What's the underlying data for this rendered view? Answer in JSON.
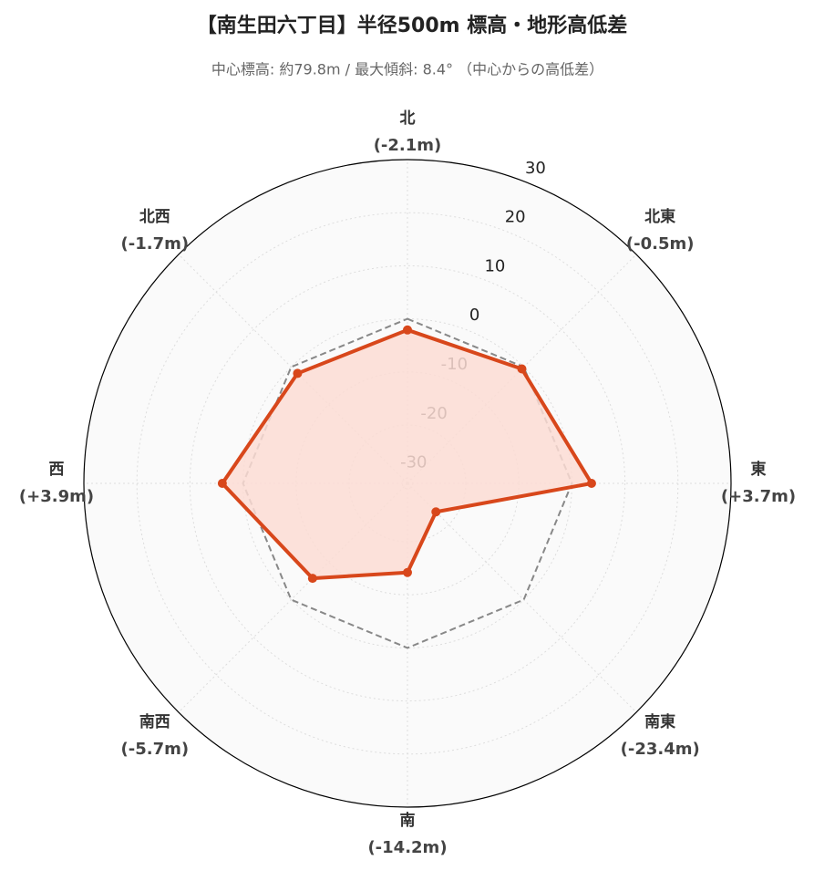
{
  "chart_data": {
    "type": "radar",
    "title": "【南生田六丁目】半径500m 標高・地形高低差",
    "subtitle": "中心標高: 約79.8m / 最大傾斜: 8.4° （中心からの高低差）",
    "categories": [
      "北",
      "北東",
      "東",
      "南東",
      "南",
      "南西",
      "西",
      "北西"
    ],
    "values": [
      -2.1,
      -0.5,
      3.7,
      -23.4,
      -14.2,
      -5.7,
      3.9,
      -1.7
    ],
    "value_labels": [
      "(-2.1m)",
      "(-0.5m)",
      "(+3.7m)",
      "(-23.4m)",
      "(-14.2m)",
      "(-5.7m)",
      "(+3.9m)",
      "(-1.7m)"
    ],
    "color": "#d8471b",
    "fill_color": "#fcdcd3",
    "baseline": 0,
    "baseline_color": "#888888",
    "ylim": [
      -31,
      30
    ],
    "yticks": [
      -30,
      -20,
      -10,
      0,
      10,
      20,
      30
    ],
    "grid": true
  }
}
